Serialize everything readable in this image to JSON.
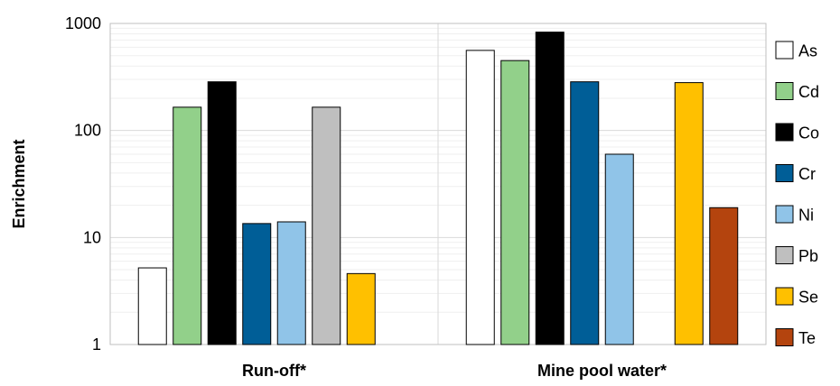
{
  "chart_data": {
    "type": "bar",
    "yscale": "log",
    "ylim": [
      1,
      1000
    ],
    "ylabel": "Enrichment",
    "xlabel": "",
    "yticks": [
      "1",
      "10",
      "100",
      "1000"
    ],
    "grid": true,
    "legend_position": "right",
    "categories": [
      "Run-off*",
      "Mine pool water*"
    ],
    "series": [
      {
        "name": "As",
        "color": "#ffffff",
        "values": [
          5.2,
          560
        ]
      },
      {
        "name": "Cd",
        "color": "#92d08a",
        "values": [
          165,
          450
        ]
      },
      {
        "name": "Co",
        "color": "#000000",
        "values": [
          285,
          830
        ]
      },
      {
        "name": "Cr",
        "color": "#005e97",
        "values": [
          13.5,
          285
        ]
      },
      {
        "name": "Ni",
        "color": "#90c4e8",
        "values": [
          14,
          60
        ]
      },
      {
        "name": "Pb",
        "color": "#bfbfbf",
        "values": [
          165,
          null
        ]
      },
      {
        "name": "Se",
        "color": "#ffc000",
        "values": [
          4.6,
          280
        ]
      },
      {
        "name": "Te",
        "color": "#b4440e",
        "values": [
          null,
          19
        ]
      }
    ]
  }
}
